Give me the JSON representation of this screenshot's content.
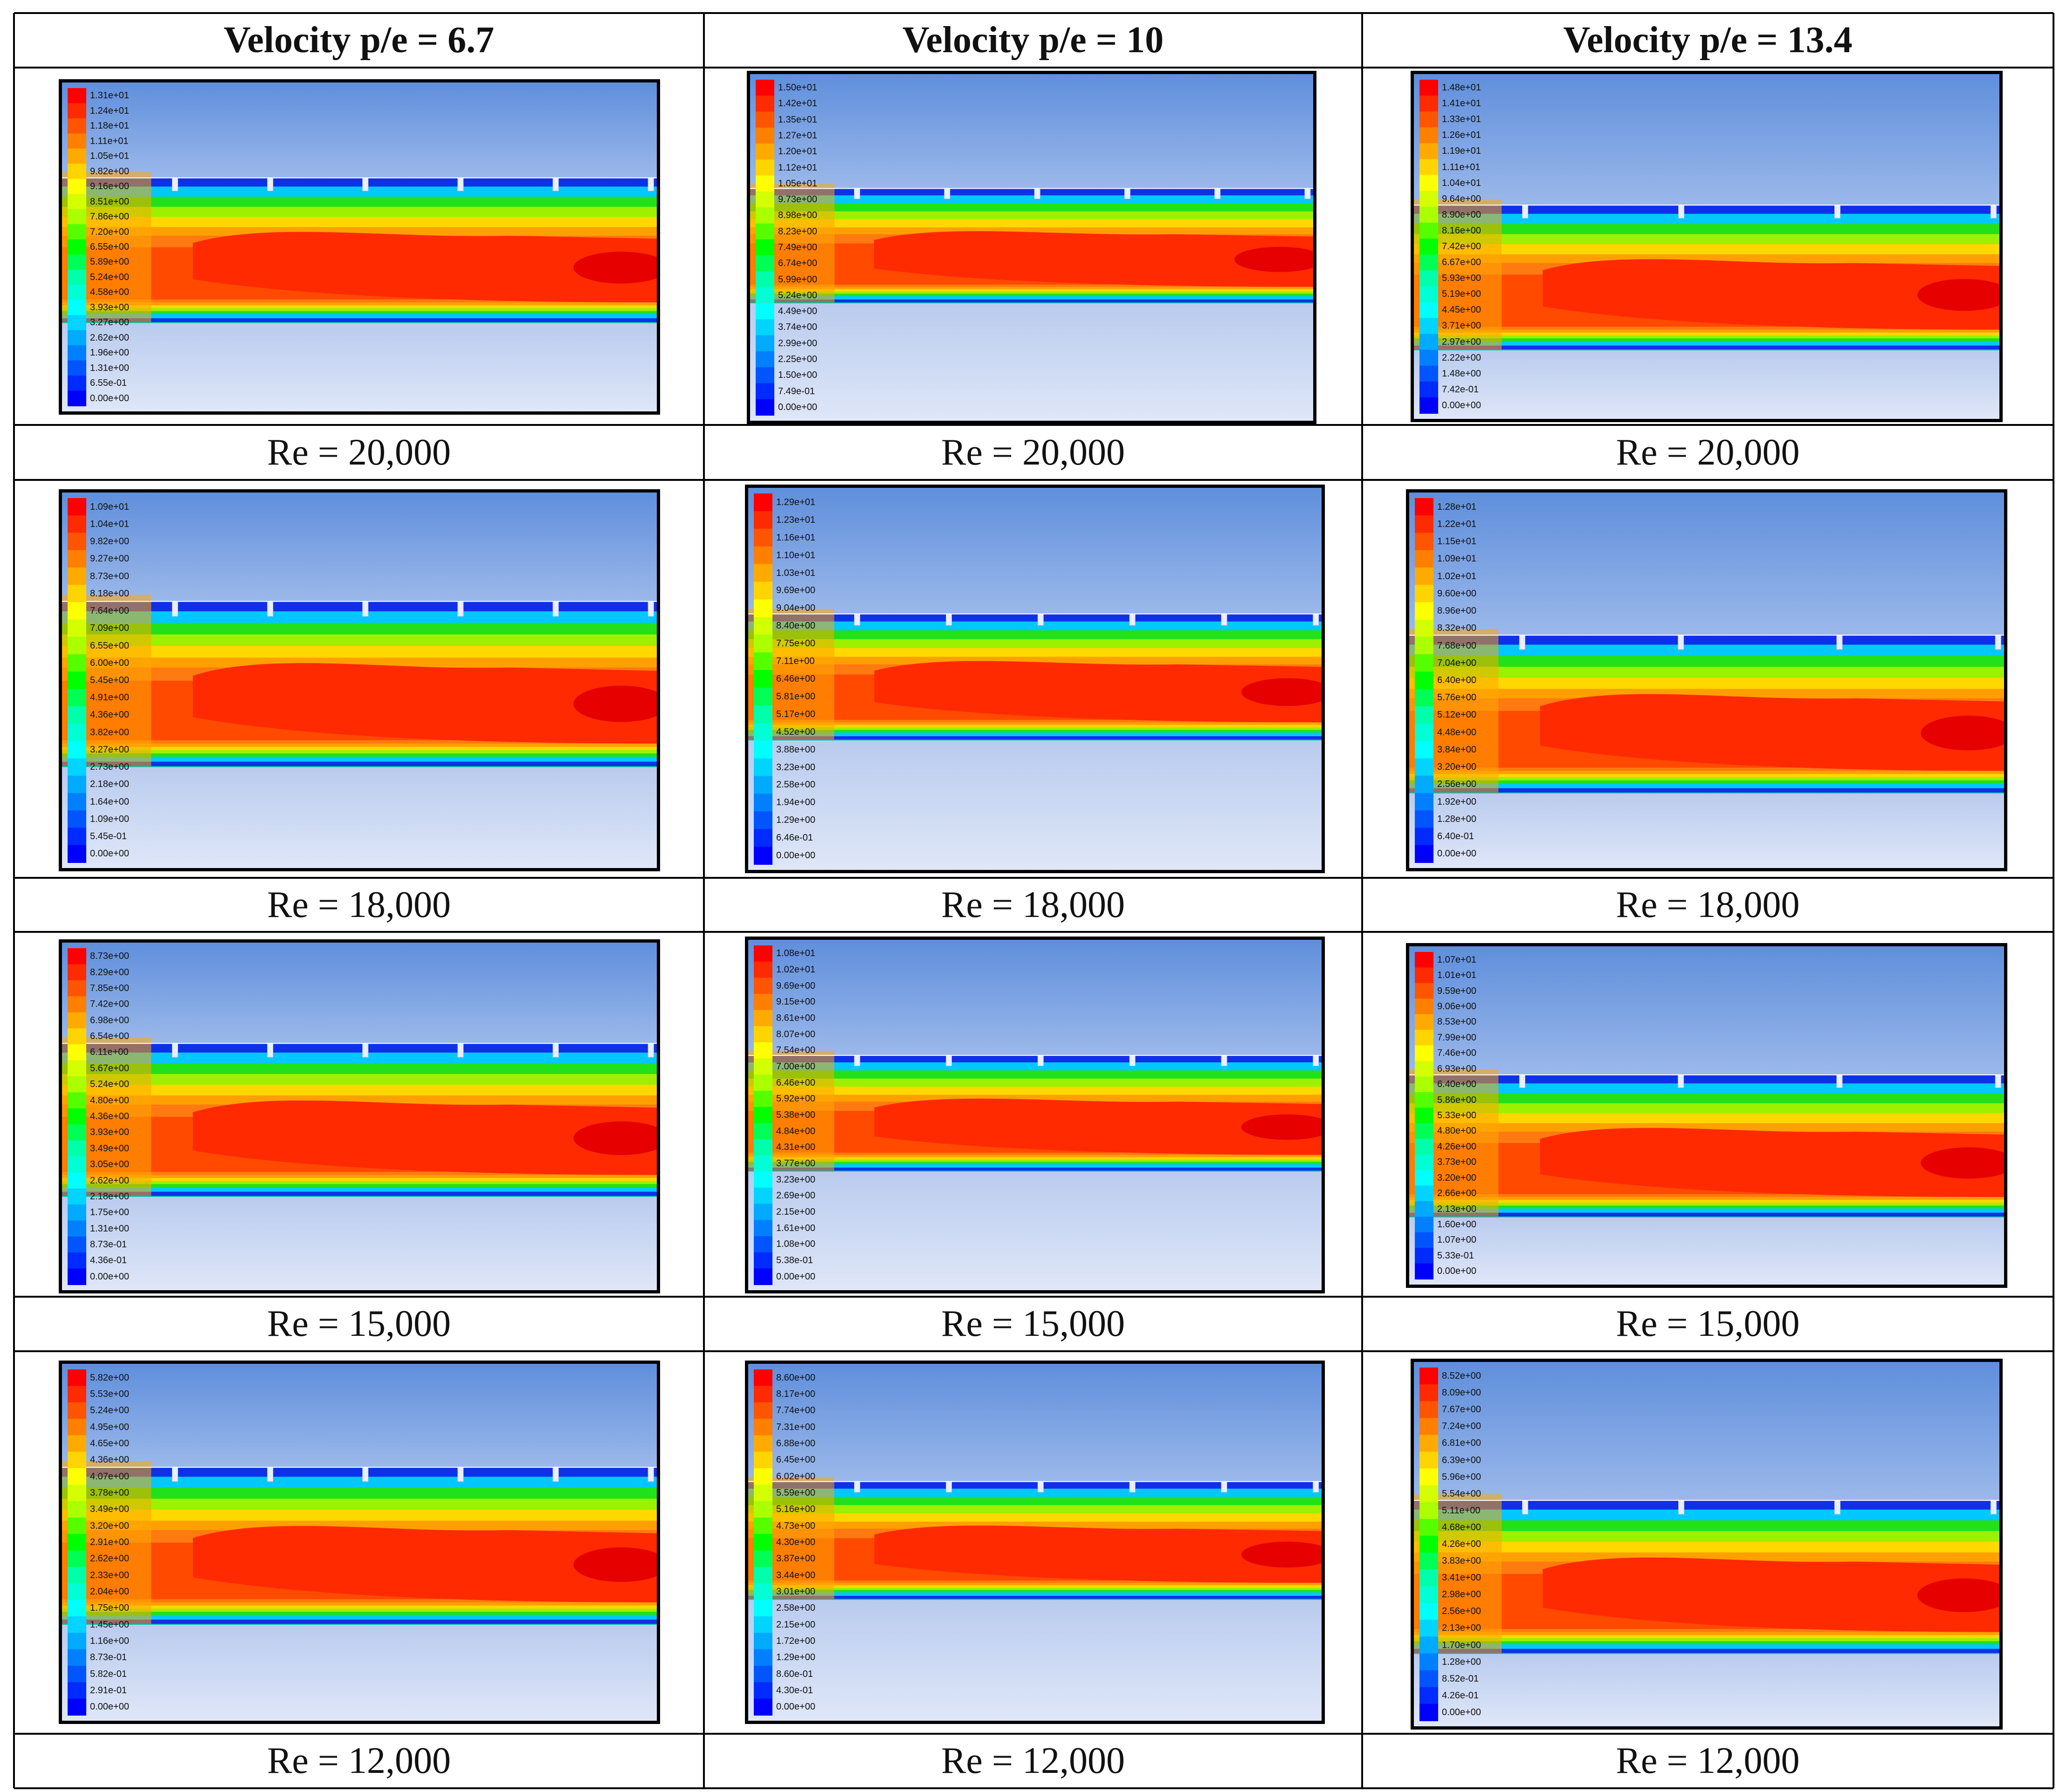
{
  "columns": [
    {
      "header": "Velocity p/e = 6.7",
      "ribs": 6
    },
    {
      "header": "Velocity p/e = 10",
      "ribs": 6
    },
    {
      "header": "Velocity p/e = 13.4",
      "ribs": 4
    }
  ],
  "rows": [
    {
      "caption": [
        "Re = 20,000",
        "Re = 20,000",
        "Re = 20,000"
      ],
      "legends": [
        [
          "1.31e+01",
          "1.24e+01",
          "1.18e+01",
          "1.11e+01",
          "1.05e+01",
          "9.82e+00",
          "9.16e+00",
          "8.51e+00",
          "7.86e+00",
          "7.20e+00",
          "6.55e+00",
          "5.89e+00",
          "5.24e+00",
          "4.58e+00",
          "3.93e+00",
          "3.27e+00",
          "2.62e+00",
          "1.96e+00",
          "1.31e+00",
          "6.55e-01",
          "0.00e+00"
        ],
        [
          "1.50e+01",
          "1.42e+01",
          "1.35e+01",
          "1.27e+01",
          "1.20e+01",
          "1.12e+01",
          "1.05e+01",
          "9.73e+00",
          "8.98e+00",
          "8.23e+00",
          "7.49e+00",
          "6.74e+00",
          "5.99e+00",
          "5.24e+00",
          "4.49e+00",
          "3.74e+00",
          "2.99e+00",
          "2.25e+00",
          "1.50e+00",
          "7.49e-01",
          "0.00e+00"
        ],
        [
          "1.48e+01",
          "1.41e+01",
          "1.33e+01",
          "1.26e+01",
          "1.19e+01",
          "1.11e+01",
          "1.04e+01",
          "9.64e+00",
          "8.90e+00",
          "8.16e+00",
          "7.42e+00",
          "6.67e+00",
          "5.93e+00",
          "5.19e+00",
          "4.45e+00",
          "3.71e+00",
          "2.97e+00",
          "2.22e+00",
          "1.48e+00",
          "7.42e-01",
          "0.00e+00"
        ]
      ]
    },
    {
      "caption": [
        "Re = 18,000",
        "Re = 18,000",
        "Re = 18,000"
      ],
      "legends": [
        [
          "1.09e+01",
          "1.04e+01",
          "9.82e+00",
          "9.27e+00",
          "8.73e+00",
          "8.18e+00",
          "7.64e+00",
          "7.09e+00",
          "6.55e+00",
          "6.00e+00",
          "5.45e+00",
          "4.91e+00",
          "4.36e+00",
          "3.82e+00",
          "3.27e+00",
          "2.73e+00",
          "2.18e+00",
          "1.64e+00",
          "1.09e+00",
          "5.45e-01",
          "0.00e+00"
        ],
        [
          "1.29e+01",
          "1.23e+01",
          "1.16e+01",
          "1.10e+01",
          "1.03e+01",
          "9.69e+00",
          "9.04e+00",
          "8.40e+00",
          "7.75e+00",
          "7.11e+00",
          "6.46e+00",
          "5.81e+00",
          "5.17e+00",
          "4.52e+00",
          "3.88e+00",
          "3.23e+00",
          "2.58e+00",
          "1.94e+00",
          "1.29e+00",
          "6.46e-01",
          "0.00e+00"
        ],
        [
          "1.28e+01",
          "1.22e+01",
          "1.15e+01",
          "1.09e+01",
          "1.02e+01",
          "9.60e+00",
          "8.96e+00",
          "8.32e+00",
          "7.68e+00",
          "7.04e+00",
          "6.40e+00",
          "5.76e+00",
          "5.12e+00",
          "4.48e+00",
          "3.84e+00",
          "3.20e+00",
          "2.56e+00",
          "1.92e+00",
          "1.28e+00",
          "6.40e-01",
          "0.00e+00"
        ]
      ]
    },
    {
      "caption": [
        "Re = 15,000",
        "Re = 15,000",
        "Re = 15,000"
      ],
      "legends": [
        [
          "8.73e+00",
          "8.29e+00",
          "7.85e+00",
          "7.42e+00",
          "6.98e+00",
          "6.54e+00",
          "6.11e+00",
          "5.67e+00",
          "5.24e+00",
          "4.80e+00",
          "4.36e+00",
          "3.93e+00",
          "3.49e+00",
          "3.05e+00",
          "2.62e+00",
          "2.18e+00",
          "1.75e+00",
          "1.31e+00",
          "8.73e-01",
          "4.36e-01",
          "0.00e+00"
        ],
        [
          "1.08e+01",
          "1.02e+01",
          "9.69e+00",
          "9.15e+00",
          "8.61e+00",
          "8.07e+00",
          "7.54e+00",
          "7.00e+00",
          "6.46e+00",
          "5.92e+00",
          "5.38e+00",
          "4.84e+00",
          "4.31e+00",
          "3.77e+00",
          "3.23e+00",
          "2.69e+00",
          "2.15e+00",
          "1.61e+00",
          "1.08e+00",
          "5.38e-01",
          "0.00e+00"
        ],
        [
          "1.07e+01",
          "1.01e+01",
          "9.59e+00",
          "9.06e+00",
          "8.53e+00",
          "7.99e+00",
          "7.46e+00",
          "6.93e+00",
          "6.40e+00",
          "5.86e+00",
          "5.33e+00",
          "4.80e+00",
          "4.26e+00",
          "3.73e+00",
          "3.20e+00",
          "2.66e+00",
          "2.13e+00",
          "1.60e+00",
          "1.07e+00",
          "5.33e-01",
          "0.00e+00"
        ]
      ]
    },
    {
      "caption": [
        "Re = 12,000",
        "Re = 12,000",
        "Re = 12,000"
      ],
      "legends": [
        [
          "5.82e+00",
          "5.53e+00",
          "5.24e+00",
          "4.95e+00",
          "4.65e+00",
          "4.36e+00",
          "4.07e+00",
          "3.78e+00",
          "3.49e+00",
          "3.20e+00",
          "2.91e+00",
          "2.62e+00",
          "2.33e+00",
          "2.04e+00",
          "1.75e+00",
          "1.45e+00",
          "1.16e+00",
          "8.73e-01",
          "5.82e-01",
          "2.91e-01",
          "0.00e+00"
        ],
        [
          "8.60e+00",
          "8.17e+00",
          "7.74e+00",
          "7.31e+00",
          "6.88e+00",
          "6.45e+00",
          "6.02e+00",
          "5.59e+00",
          "5.16e+00",
          "4.73e+00",
          "4.30e+00",
          "3.87e+00",
          "3.44e+00",
          "3.01e+00",
          "2.58e+00",
          "2.15e+00",
          "1.72e+00",
          "1.29e+00",
          "8.60e-01",
          "4.30e-01",
          "0.00e+00"
        ],
        [
          "8.52e+00",
          "8.09e+00",
          "7.67e+00",
          "7.24e+00",
          "6.81e+00",
          "6.39e+00",
          "5.96e+00",
          "5.54e+00",
          "5.11e+00",
          "4.68e+00",
          "4.26e+00",
          "3.83e+00",
          "3.41e+00",
          "2.98e+00",
          "2.56e+00",
          "2.13e+00",
          "1.70e+00",
          "1.28e+00",
          "8.52e-01",
          "4.26e-01",
          "0.00e+00"
        ]
      ]
    }
  ],
  "colors": {
    "legend_scale": [
      "#ff0000",
      "#ff2b00",
      "#ff5500",
      "#ff7f00",
      "#ffaa00",
      "#ffd400",
      "#ffff00",
      "#d4ff00",
      "#aaff00",
      "#55ff00",
      "#00ff00",
      "#00ff55",
      "#00ffaa",
      "#00ffd4",
      "#00ffff",
      "#00d4ff",
      "#00aaff",
      "#0080ff",
      "#0055ff",
      "#002bff",
      "#0000ff"
    ],
    "sky_top": "#5f8fdc",
    "sky_bottom": "#9bb8ea",
    "floor_top": "#b9cbee",
    "floor_bottom": "#dfe7f8",
    "core": "#ff2a00",
    "band_orange": "#ff7a10",
    "band_yellow": "#ffd800",
    "band_green": "#22e01a",
    "band_blue": "#1030e8"
  }
}
